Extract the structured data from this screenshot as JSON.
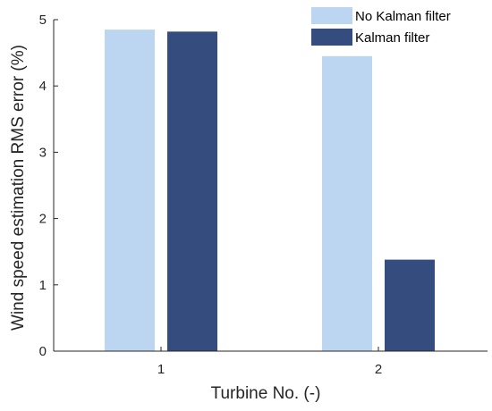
{
  "chart_data": {
    "type": "bar",
    "categories": [
      "1",
      "2"
    ],
    "series": [
      {
        "name": "No Kalman filter",
        "color": "#bcd6f2",
        "values": [
          4.85,
          4.45
        ]
      },
      {
        "name": "Kalman filter",
        "color": "#344d7e",
        "values": [
          4.82,
          1.38
        ]
      }
    ],
    "xlabel": "Turbine No. (-)",
    "ylabel": "Wind speed estimation RMS error (%)",
    "ylim": [
      0,
      5
    ],
    "yticks": [
      "0",
      "1",
      "2",
      "3",
      "4",
      "5"
    ],
    "grid": false,
    "legend_position": "top-right"
  }
}
